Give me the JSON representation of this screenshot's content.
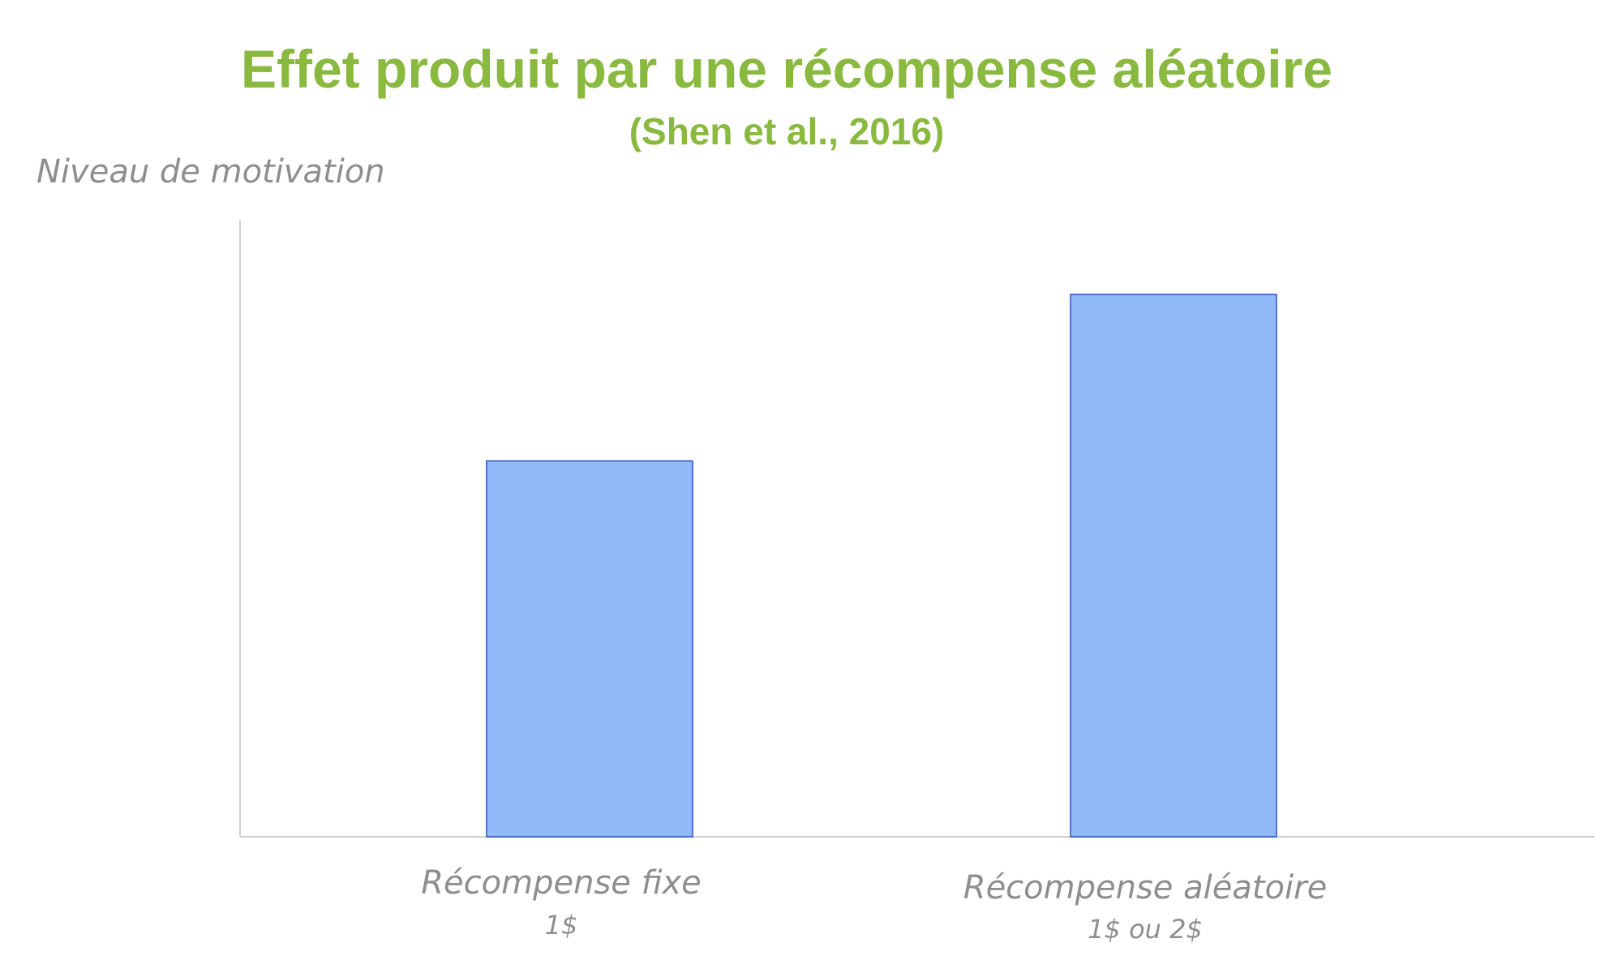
{
  "colors": {
    "title": "#8ab93f",
    "axis_text": "#8e8e8e",
    "axis_line": "#cfcfcf",
    "bar_fill": "#8fbaf7",
    "bar_stroke": "#2b4fc2",
    "background": "#ffffff"
  },
  "chart_data": {
    "type": "bar",
    "title": "Effet produit par une récompense aléatoire",
    "subtitle": "(Shen et al., 2016)",
    "xlabel": "",
    "ylabel": "Niveau de motivation",
    "categories": [
      "Récompense fixe",
      "Récompense aléatoire"
    ],
    "category_sublabels": [
      "1$",
      "1$ ou 2$"
    ],
    "values": [
      0.61,
      0.88
    ],
    "ylim": [
      0,
      1
    ],
    "y_ticks_shown": false,
    "grid": false,
    "legend": "none"
  }
}
